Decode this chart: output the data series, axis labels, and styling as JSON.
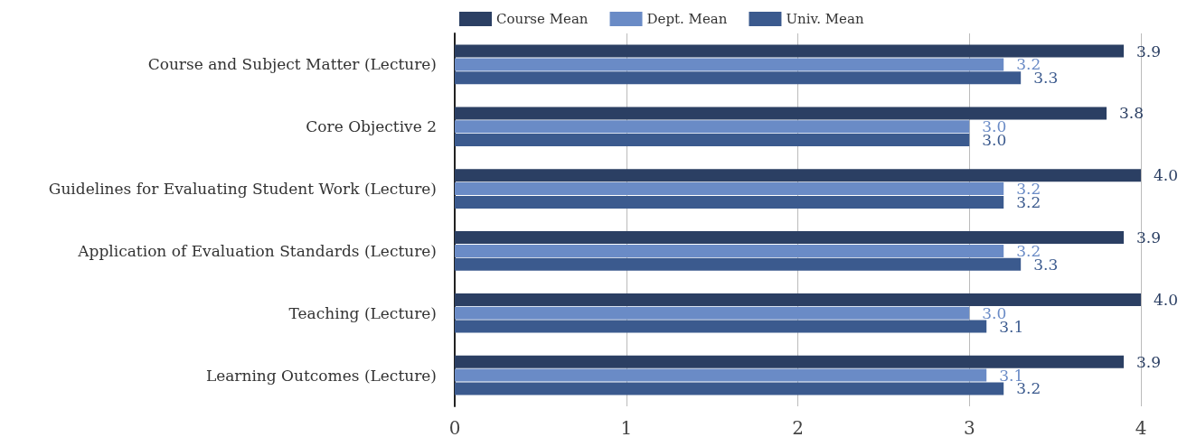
{
  "chart_data": {
    "type": "bar",
    "orientation": "horizontal",
    "categories": [
      "Course and Subject Matter (Lecture)",
      "Core Objective 2",
      "Guidelines for Evaluating Student Work (Lecture)",
      "Application of Evaluation Standards (Lecture)",
      "Teaching (Lecture)",
      "Learning Outcomes (Lecture)"
    ],
    "series": [
      {
        "name": "Course Mean",
        "color": "#2b3f63",
        "values": [
          3.9,
          3.8,
          4,
          3.9,
          4,
          3.9
        ],
        "value_labels": [
          "3.9",
          "3.8",
          "4.0",
          "3.9",
          "4.0",
          "3.9"
        ]
      },
      {
        "name": "Dept. Mean",
        "color": "#6a8bc6",
        "values": [
          3.2,
          3,
          3.2,
          3.2,
          3,
          3.1
        ],
        "value_labels": [
          "3.2",
          "3.0",
          "3.2",
          "3.2",
          "3.0",
          "3.1"
        ]
      },
      {
        "name": "Univ. Mean",
        "color": "#3b5a8e",
        "values": [
          3.3,
          3,
          3.2,
          3.3,
          3.1,
          3.2
        ],
        "value_labels": [
          "3.3",
          "3.0",
          "3.2",
          "3.3",
          "3.1",
          "3.2"
        ]
      }
    ],
    "xlim": [
      0,
      4
    ],
    "xticks": [
      0,
      1,
      2,
      3,
      4
    ],
    "grid": "x",
    "legend": "top"
  }
}
